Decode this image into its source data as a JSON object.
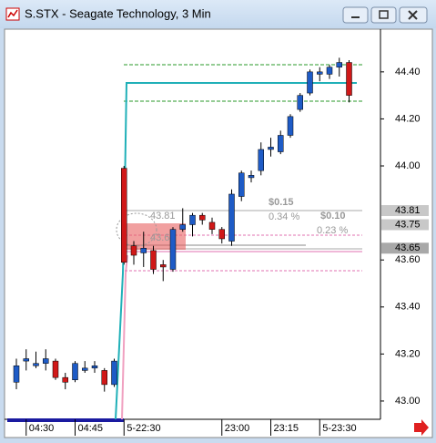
{
  "chart_data": {
    "type": "candlestick",
    "title": "S.STX - Seagate Technology, 3 Min",
    "categories": [
      null,
      "04:30",
      null,
      null,
      null,
      null,
      "04:45",
      null,
      null,
      null,
      null,
      "5-22:30",
      null,
      null,
      null,
      null,
      null,
      null,
      null,
      null,
      null,
      "23:00",
      null,
      null,
      null,
      null,
      "23:15",
      null,
      null,
      null,
      null,
      "5-23:30",
      null,
      null,
      null
    ],
    "series": [
      {
        "up_color": "#1e5bc6",
        "down_color": "#d01818",
        "open": [
          43.08,
          43.17,
          43.15,
          43.16,
          43.17,
          43.1,
          43.09,
          43.13,
          43.14,
          43.13,
          43.07,
          43.99,
          43.66,
          43.63,
          43.64,
          43.58,
          43.56,
          43.73,
          43.75,
          43.79,
          43.76,
          43.73,
          43.68,
          43.87,
          43.95,
          43.98,
          44.07,
          44.06,
          44.13,
          44.24,
          44.31,
          44.39,
          44.39,
          44.42,
          44.44
        ],
        "high": [
          43.18,
          43.22,
          43.21,
          43.22,
          43.18,
          43.12,
          43.17,
          43.17,
          43.17,
          43.14,
          43.18,
          44.0,
          43.68,
          43.72,
          43.66,
          43.6,
          43.74,
          43.82,
          43.8,
          43.8,
          43.78,
          43.74,
          43.9,
          43.98,
          43.98,
          44.1,
          44.12,
          44.15,
          44.22,
          44.31,
          44.41,
          44.42,
          44.43,
          44.46,
          44.45
        ],
        "low": [
          43.05,
          43.13,
          43.14,
          43.13,
          43.09,
          43.05,
          43.08,
          43.12,
          43.12,
          43.04,
          43.06,
          43.58,
          43.58,
          43.57,
          43.54,
          43.51,
          43.55,
          43.72,
          43.7,
          43.75,
          43.71,
          43.67,
          43.66,
          43.85,
          43.93,
          43.96,
          44.04,
          44.05,
          44.12,
          44.23,
          44.3,
          44.36,
          44.37,
          44.38,
          44.27
        ],
        "close": [
          43.15,
          43.18,
          43.16,
          43.18,
          43.1,
          43.08,
          43.16,
          43.14,
          43.15,
          43.07,
          43.17,
          43.59,
          43.62,
          43.65,
          43.56,
          43.57,
          43.73,
          43.75,
          43.79,
          43.77,
          43.73,
          43.69,
          43.88,
          43.97,
          43.96,
          44.07,
          44.08,
          44.13,
          44.21,
          44.3,
          44.4,
          44.4,
          44.42,
          44.44,
          44.3
        ]
      }
    ],
    "ylim": [
      42.93,
      44.57
    ],
    "yticks": [
      {
        "value": 43,
        "label": "43.00"
      },
      {
        "value": 43.2,
        "label": "43.20"
      },
      {
        "value": 43.4,
        "label": "43.40"
      },
      {
        "value": 43.6,
        "label": "43.60"
      },
      {
        "value": 44,
        "label": "44.00"
      },
      {
        "value": 44.2,
        "label": "44.20"
      },
      {
        "value": 44.4,
        "label": "44.40"
      }
    ],
    "price_markers": [
      43.81,
      43.75,
      43.65
    ],
    "annotations": [
      "$0.15",
      "0.34 %",
      "$0.10",
      "0.23 %",
      "43.81",
      "43.64"
    ]
  }
}
